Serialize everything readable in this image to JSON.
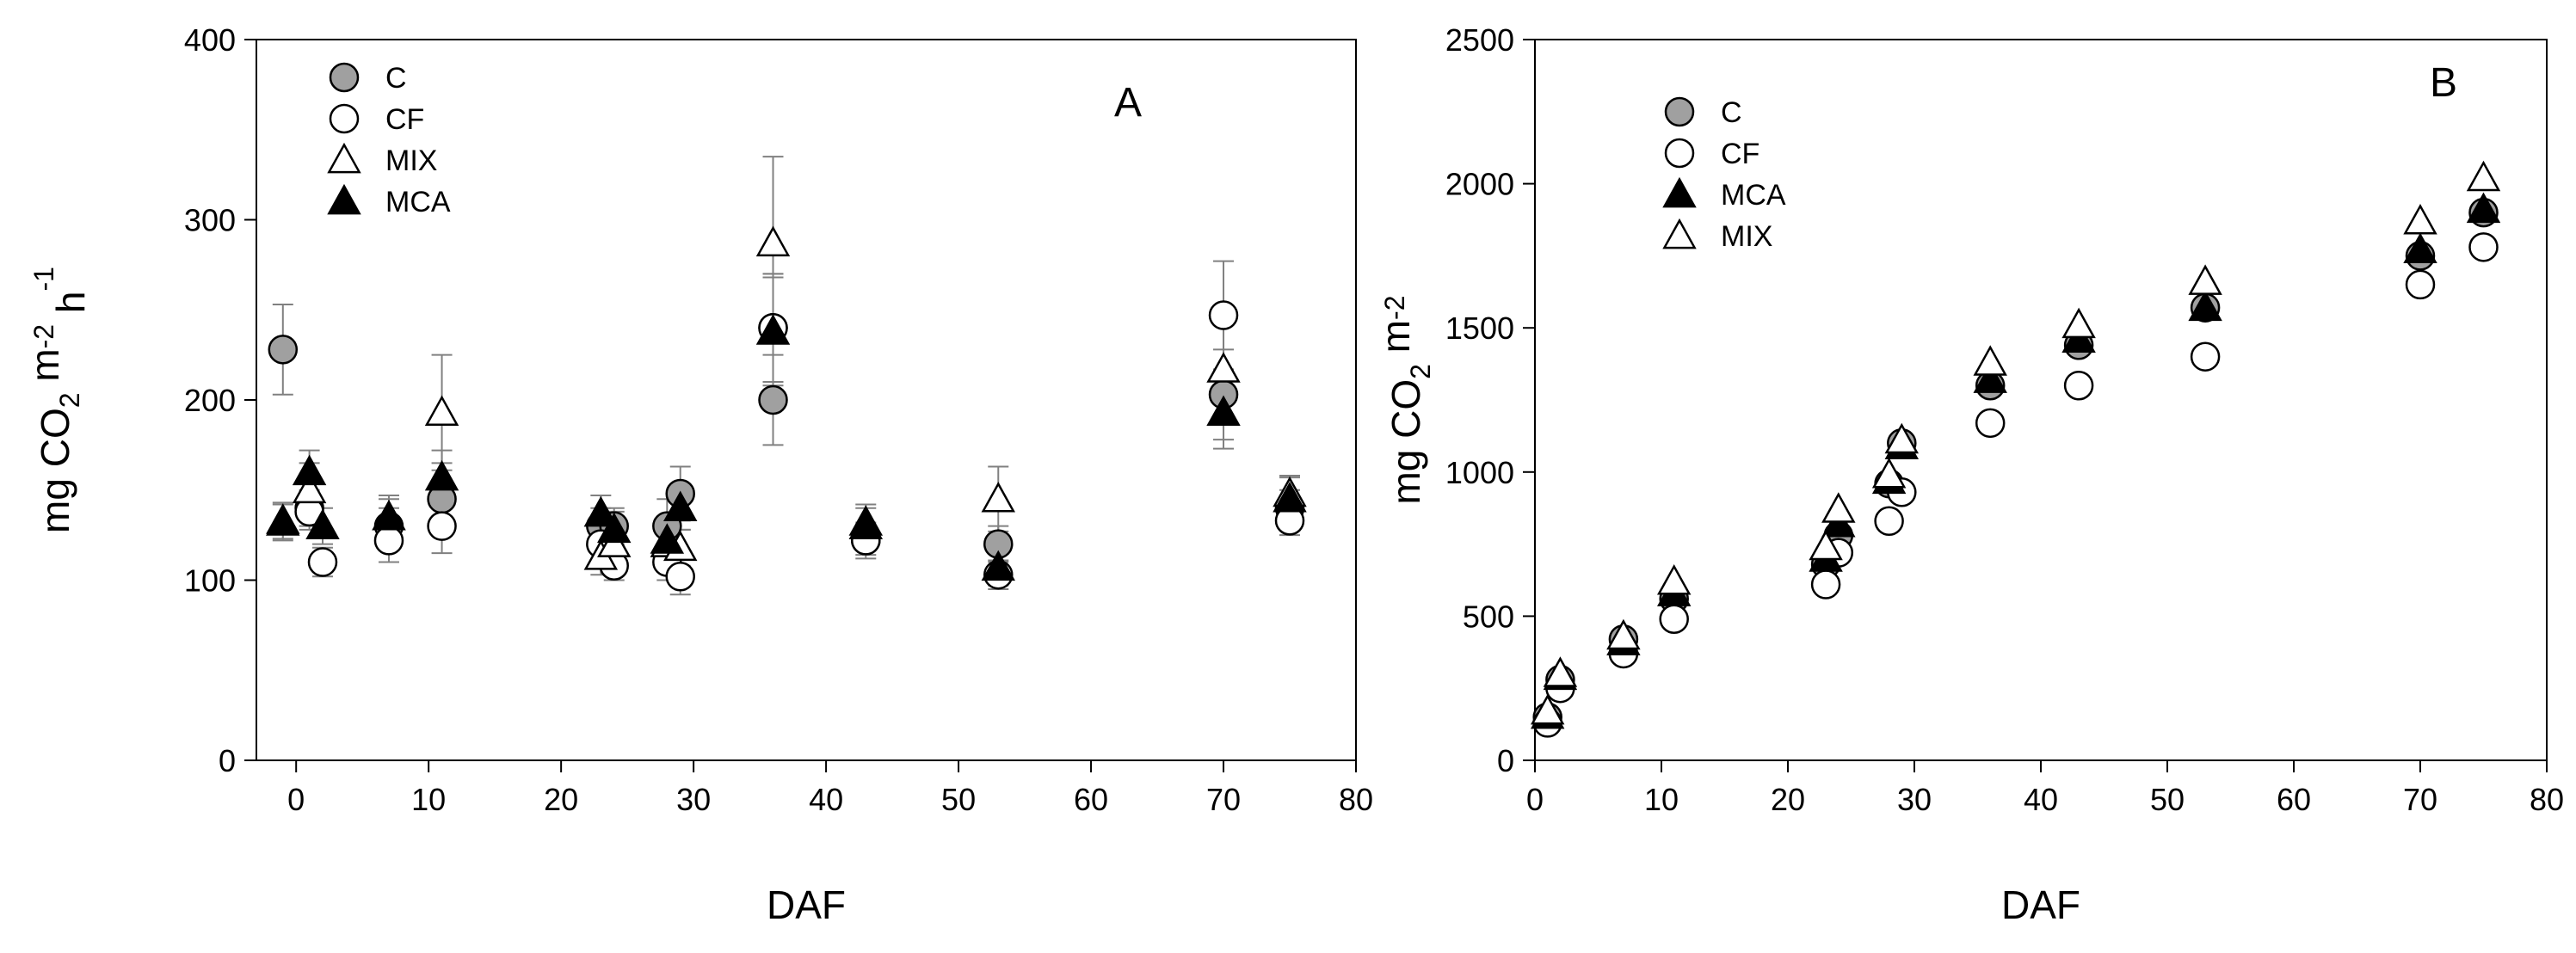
{
  "chart_data": [
    {
      "type": "scatter",
      "panel_label": "A",
      "xlabel": "DAF",
      "ylabel": {
        "base": "mg CO",
        "sub": "2",
        "mid": " m",
        "sup1": "-2",
        "mid2": " h",
        "sup2": "-1"
      },
      "xlim": [
        -3,
        80
      ],
      "ylim": [
        0,
        400
      ],
      "xticks": [
        "0",
        "10",
        "20",
        "30",
        "40",
        "50",
        "60",
        "70",
        "80"
      ],
      "xtick_values": [
        0,
        10,
        20,
        30,
        40,
        50,
        60,
        70,
        80
      ],
      "yticks": [
        "0",
        "100",
        "200",
        "300",
        "400"
      ],
      "ytick_values": [
        0,
        100,
        200,
        300,
        400
      ],
      "legend_position": "top-left",
      "series": [
        {
          "name": "C",
          "marker": "circle-filled",
          "color": "#a0a0a0",
          "points": [
            [
              -1,
              228,
              25
            ],
            [
              1,
              140,
              10
            ],
            [
              7,
              130,
              10
            ],
            [
              11,
              145,
              20
            ],
            [
              23,
              130,
              10
            ],
            [
              24,
              130,
              10
            ],
            [
              28,
              130,
              15
            ],
            [
              29,
              148,
              15
            ],
            [
              36,
              240,
              30
            ],
            [
              36,
              200,
              25
            ],
            [
              43,
              122,
              10
            ],
            [
              53,
              120,
              10
            ],
            [
              70,
              203,
              25
            ],
            [
              75,
              140,
              10
            ]
          ]
        },
        {
          "name": "CF",
          "marker": "circle-open",
          "color": "#000000",
          "points": [
            [
              1,
              138,
              10
            ],
            [
              2,
              110,
              8
            ],
            [
              7,
              122,
              12
            ],
            [
              11,
              130,
              15
            ],
            [
              23,
              120,
              10
            ],
            [
              24,
              108,
              8
            ],
            [
              28,
              110,
              10
            ],
            [
              29,
              102,
              10
            ],
            [
              36,
              240,
              30
            ],
            [
              43,
              122,
              8
            ],
            [
              53,
              103,
              8
            ],
            [
              70,
              247,
              30
            ],
            [
              75,
              133,
              8
            ]
          ]
        },
        {
          "name": "MIX",
          "marker": "triangle-open",
          "color": "#000000",
          "points": [
            [
              -1,
              133,
              10
            ],
            [
              1,
              150,
              15
            ],
            [
              7,
              135,
              12
            ],
            [
              11,
              193,
              32
            ],
            [
              23,
              113,
              10
            ],
            [
              24,
              120,
              10
            ],
            [
              28,
              120,
              10
            ],
            [
              29,
              118,
              10
            ],
            [
              36,
              287,
              48
            ],
            [
              43,
              132,
              10
            ],
            [
              53,
              145,
              18
            ],
            [
              70,
              217,
              25
            ],
            [
              75,
              148,
              10
            ]
          ]
        },
        {
          "name": "MCA",
          "marker": "triangle-filled",
          "color": "#000000",
          "points": [
            [
              -1,
              132,
              10
            ],
            [
              1,
              160,
              12
            ],
            [
              2,
              130,
              10
            ],
            [
              7,
              135,
              10
            ],
            [
              11,
              157,
              15
            ],
            [
              23,
              137,
              10
            ],
            [
              24,
              128,
              10
            ],
            [
              28,
              122,
              10
            ],
            [
              29,
              140,
              12
            ],
            [
              36,
              238,
              30
            ],
            [
              43,
              130,
              10
            ],
            [
              53,
              107,
              10
            ],
            [
              70,
              193,
              20
            ],
            [
              75,
              145,
              12
            ]
          ]
        }
      ]
    },
    {
      "type": "scatter",
      "panel_label": "B",
      "xlabel": "DAF",
      "ylabel": {
        "base": "mg CO",
        "sub": "2",
        "mid": " m",
        "sup1": "-2",
        "mid2": "",
        "sup2": ""
      },
      "xlim": [
        0,
        80
      ],
      "ylim": [
        0,
        2500
      ],
      "xticks": [
        "0",
        "10",
        "20",
        "30",
        "40",
        "50",
        "60",
        "70",
        "80"
      ],
      "xtick_values": [
        0,
        10,
        20,
        30,
        40,
        50,
        60,
        70,
        80
      ],
      "yticks": [
        "0",
        "500",
        "1000",
        "1500",
        "2000",
        "2500"
      ],
      "ytick_values": [
        0,
        500,
        1000,
        1500,
        2000,
        2500
      ],
      "legend_position": "top-left",
      "series": [
        {
          "name": "C",
          "marker": "circle-filled",
          "color": "#a0a0a0",
          "points": [
            [
              1,
              150
            ],
            [
              2,
              280
            ],
            [
              7,
              420
            ],
            [
              11,
              560
            ],
            [
              23,
              680
            ],
            [
              24,
              780
            ],
            [
              28,
              960
            ],
            [
              29,
              1100
            ],
            [
              36,
              1300
            ],
            [
              43,
              1440
            ],
            [
              53,
              1570
            ],
            [
              70,
              1750
            ],
            [
              75,
              1900
            ]
          ]
        },
        {
          "name": "CF",
          "marker": "circle-open",
          "color": "#000000",
          "points": [
            [
              1,
              130
            ],
            [
              2,
              250
            ],
            [
              7,
              370
            ],
            [
              11,
              490
            ],
            [
              23,
              610
            ],
            [
              24,
              720
            ],
            [
              28,
              830
            ],
            [
              29,
              930
            ],
            [
              36,
              1170
            ],
            [
              43,
              1300
            ],
            [
              53,
              1400
            ],
            [
              70,
              1650
            ],
            [
              75,
              1780
            ]
          ]
        },
        {
          "name": "MCA",
          "marker": "triangle-filled",
          "color": "#000000",
          "points": [
            [
              1,
              155
            ],
            [
              2,
              290
            ],
            [
              7,
              410
            ],
            [
              11,
              580
            ],
            [
              23,
              700
            ],
            [
              24,
              820
            ],
            [
              28,
              970
            ],
            [
              29,
              1090
            ],
            [
              36,
              1320
            ],
            [
              43,
              1460
            ],
            [
              53,
              1570
            ],
            [
              70,
              1770
            ],
            [
              75,
              1910
            ]
          ]
        },
        {
          "name": "MIX",
          "marker": "triangle-open",
          "color": "#000000",
          "points": [
            [
              1,
              170
            ],
            [
              2,
              300
            ],
            [
              7,
              430
            ],
            [
              11,
              620
            ],
            [
              23,
              740
            ],
            [
              24,
              870
            ],
            [
              28,
              990
            ],
            [
              29,
              1110
            ],
            [
              36,
              1380
            ],
            [
              43,
              1510
            ],
            [
              53,
              1660
            ],
            [
              70,
              1870
            ],
            [
              75,
              2020
            ]
          ]
        }
      ]
    }
  ]
}
